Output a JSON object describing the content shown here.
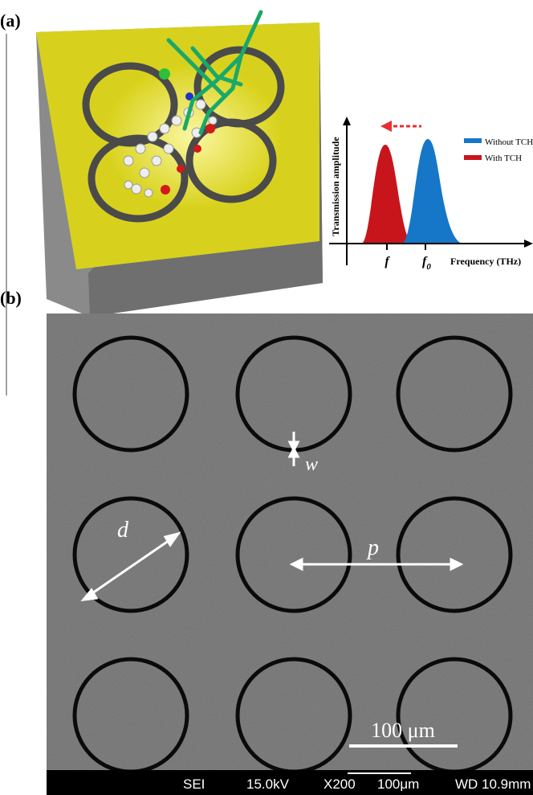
{
  "panel_a": {
    "label": "(a)",
    "y_axis_label": "Transmission amplitude",
    "x_axis_label": "Frequency (THz)",
    "legend": [
      "Without TCH",
      "With TCH"
    ],
    "tick_f": "f",
    "tick_f0": {
      "base": "f",
      "sub": "0"
    }
  },
  "panel_b": {
    "label": "(b)",
    "w": "w",
    "d": "d",
    "p": "p",
    "scale_bar": "100 μm",
    "info_bar": [
      "SEI",
      "15.0kV",
      "X200",
      "100μm",
      "WD 10.9mm"
    ]
  }
}
